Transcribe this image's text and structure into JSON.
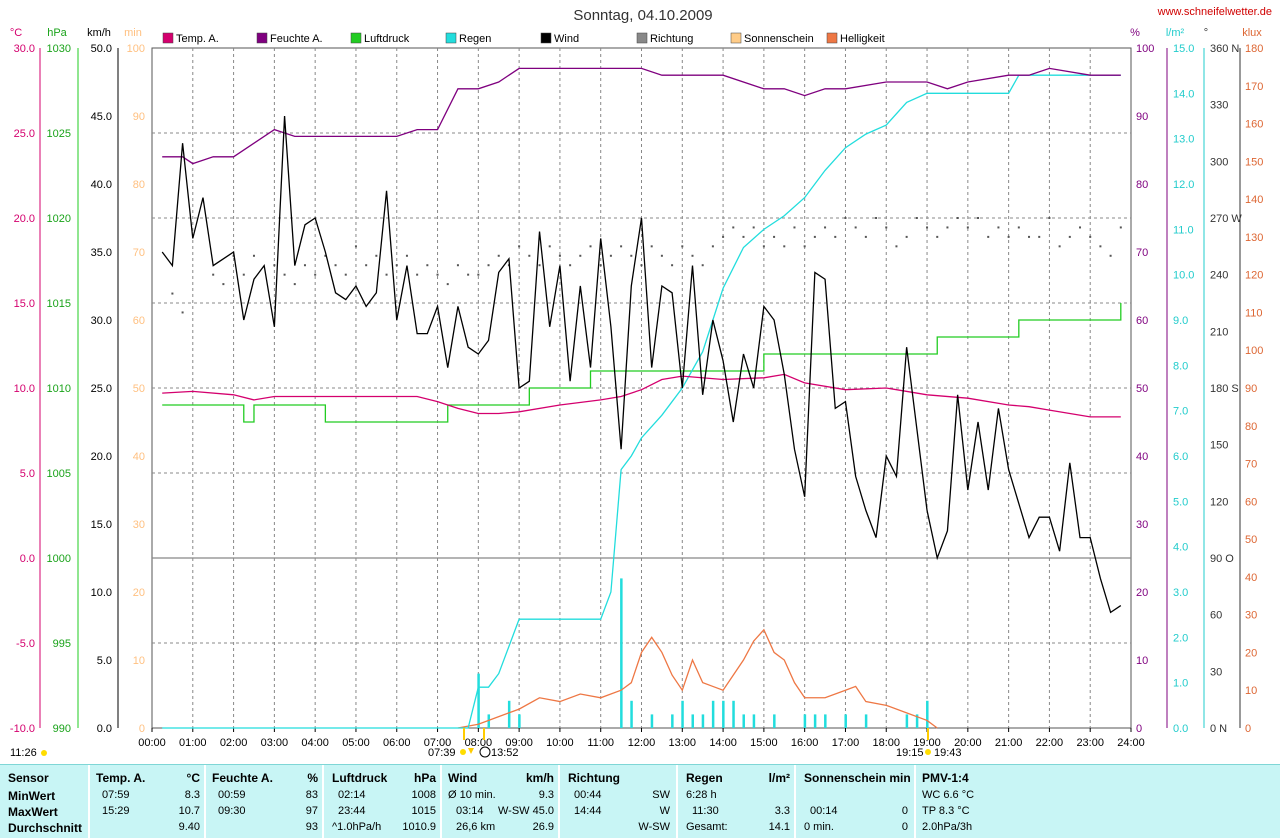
{
  "title": "Sonntag, 04.10.2009",
  "site": "www.schneifelwetter.de",
  "colors": {
    "temp": "#d4006e",
    "humidity": "#7f007f",
    "pressure": "#22cc22",
    "rain": "#22dddd",
    "wind": "#000000",
    "direction": "#555555",
    "sunshine": "#ffcc88",
    "brightness": "#ee7744",
    "grid": "#888888",
    "panel": "#c8f5f5"
  },
  "legend": [
    {
      "label": "Temp. A.",
      "color": "#d4006e"
    },
    {
      "label": "Feuchte A.",
      "color": "#7f007f"
    },
    {
      "label": "Luftdruck",
      "color": "#22cc22"
    },
    {
      "label": "Regen",
      "color": "#22dddd"
    },
    {
      "label": "Wind",
      "color": "#000000"
    },
    {
      "label": "Richtung",
      "color": "#888888"
    },
    {
      "label": "Sonnenschein",
      "color": "#ffcc88"
    },
    {
      "label": "Helligkeit",
      "color": "#ee7744"
    }
  ],
  "axes": {
    "temp": {
      "unit": "°C",
      "ticks": [
        "30.0",
        "25.0",
        "20.0",
        "15.0",
        "10.0",
        "5.0",
        "0.0",
        "-5.0",
        "-10.0"
      ]
    },
    "pressure": {
      "unit": "hPa",
      "ticks": [
        "1030",
        "1025",
        "1020",
        "1015",
        "1010",
        "1005",
        "1000",
        "995",
        "990"
      ]
    },
    "wind": {
      "unit": "km/h",
      "ticks": [
        "50.0",
        "45.0",
        "40.0",
        "35.0",
        "30.0",
        "25.0",
        "20.0",
        "15.0",
        "10.0",
        "5.0",
        "0.0"
      ]
    },
    "sun": {
      "unit": "min",
      "ticks": [
        "100",
        "90",
        "80",
        "70",
        "60",
        "50",
        "40",
        "30",
        "20",
        "10",
        "0"
      ]
    },
    "humidity": {
      "unit": "%",
      "ticks": [
        "100",
        "90",
        "80",
        "70",
        "60",
        "50",
        "40",
        "30",
        "20",
        "10",
        "0"
      ]
    },
    "rain": {
      "unit": "l/m²",
      "ticks": [
        "15.0",
        "14.0",
        "13.0",
        "12.0",
        "11.0",
        "10.0",
        "9.0",
        "8.0",
        "7.0",
        "6.0",
        "5.0",
        "4.0",
        "3.0",
        "2.0",
        "1.0",
        "0.0"
      ]
    },
    "direction": {
      "unit": "°",
      "ticks": [
        "360 N",
        "330",
        "300",
        "270 W",
        "240",
        "210",
        "180 S",
        "150",
        "120",
        "90 O",
        "60",
        "30",
        "0 N"
      ]
    },
    "lux": {
      "unit": "klux",
      "ticks": [
        "180",
        "170",
        "160",
        "150",
        "140",
        "130",
        "120",
        "110",
        "100",
        "90",
        "80",
        "70",
        "60",
        "50",
        "40",
        "30",
        "20",
        "10",
        "0"
      ]
    },
    "time": {
      "ticks": [
        "00:00",
        "01:00",
        "02:00",
        "03:00",
        "04:00",
        "05:00",
        "06:00",
        "07:00",
        "08:00",
        "09:00",
        "10:00",
        "11:00",
        "12:00",
        "13:00",
        "14:00",
        "15:00",
        "16:00",
        "17:00",
        "18:00",
        "19:00",
        "20:00",
        "21:00",
        "22:00",
        "23:00",
        "24:00"
      ]
    }
  },
  "sun_marks": {
    "moonset": "11:26",
    "sunrise": "07:39",
    "noon": "13:52",
    "sunset": "19:15",
    "moonrise": "19:43"
  },
  "chart_data": {
    "type": "line",
    "title": "Sonntag, 04.10.2009",
    "x_range": [
      "00:00",
      "24:00"
    ],
    "series": [
      {
        "name": "Temp. A.",
        "unit": "°C",
        "ylim": [
          -10,
          30
        ],
        "x": [
          0.25,
          1,
          2,
          2.5,
          3,
          4,
          5,
          6,
          6.5,
          7,
          7.5,
          8,
          8.5,
          9,
          10,
          11,
          11.5,
          12,
          12.5,
          13,
          14,
          15,
          15.5,
          16,
          17,
          18,
          19,
          20,
          21,
          21.5,
          22,
          23,
          23.75
        ],
        "y": [
          9.7,
          9.8,
          9.6,
          9.3,
          9.5,
          9.5,
          9.5,
          9.5,
          9.5,
          9.2,
          8.8,
          8.5,
          8.5,
          8.6,
          9.0,
          9.3,
          9.5,
          9.9,
          10.5,
          10.7,
          10.5,
          10.6,
          10.8,
          10.3,
          9.9,
          10.0,
          9.6,
          9.4,
          9.0,
          8.9,
          8.7,
          8.3,
          8.3
        ]
      },
      {
        "name": "Feuchte A.",
        "unit": "%",
        "ylim": [
          0,
          100
        ],
        "x": [
          0.25,
          0.75,
          1,
          1.5,
          2,
          2.5,
          3,
          3.5,
          6,
          6.5,
          7,
          7.5,
          8,
          8.5,
          9,
          9.5,
          10,
          11,
          12,
          12.5,
          13,
          14,
          15,
          15.5,
          16,
          16.5,
          17,
          18,
          18.5,
          19,
          19.5,
          20,
          21,
          21.5,
          22,
          23,
          23.5,
          23.75
        ],
        "y": [
          84,
          84,
          83,
          84,
          84,
          86,
          88,
          87,
          87,
          88,
          88,
          94,
          94,
          95,
          97,
          97,
          97,
          97,
          97,
          96,
          96,
          96,
          94,
          94,
          93,
          94,
          94,
          95,
          95,
          95,
          94,
          95,
          96,
          96,
          97,
          96,
          96,
          96
        ]
      },
      {
        "name": "Luftdruck",
        "unit": "hPa",
        "ylim": [
          990,
          1030
        ],
        "x": [
          0.25,
          2,
          2.25,
          2.5,
          3,
          4,
          4.25,
          6,
          7,
          7.25,
          9,
          9.25,
          10,
          10.75,
          11,
          12,
          13,
          14,
          15,
          15,
          16,
          17,
          18,
          19,
          19.25,
          20,
          21,
          21.25,
          22,
          23,
          23.75
        ],
        "y": [
          1009,
          1009,
          1008,
          1009,
          1009,
          1009,
          1008,
          1008,
          1008,
          1009,
          1009,
          1010,
          1010,
          1011,
          1011,
          1011,
          1011,
          1011,
          1011,
          1012,
          1012,
          1012,
          1012,
          1012,
          1013,
          1013,
          1013,
          1014,
          1014,
          1014,
          1015
        ]
      },
      {
        "name": "Regen",
        "unit": "l/m²",
        "ylim": [
          0,
          15
        ],
        "x": [
          0.25,
          7.75,
          8,
          8.25,
          8.5,
          9,
          11,
          11.25,
          11.5,
          11.75,
          12,
          12.5,
          13,
          13.5,
          14,
          14.5,
          15,
          15.5,
          16,
          16.5,
          17,
          17.5,
          18,
          18.5,
          19,
          20,
          21,
          21.25,
          23.75
        ],
        "y": [
          0,
          0,
          0.9,
          0.9,
          1.2,
          2.4,
          2.4,
          3.0,
          5.7,
          6.0,
          6.4,
          6.9,
          7.5,
          8.3,
          9.7,
          10.6,
          11.0,
          11.3,
          11.7,
          12.3,
          12.8,
          13.1,
          13.3,
          13.8,
          14.0,
          14.0,
          14.0,
          14.4,
          14.4
        ]
      },
      {
        "name": "Wind",
        "unit": "km/h",
        "ylim": [
          0,
          50
        ],
        "x": [
          0.25,
          0.5,
          0.75,
          1,
          1.25,
          1.5,
          1.75,
          2,
          2.25,
          2.5,
          2.75,
          3,
          3.25,
          3.5,
          3.75,
          4,
          4.25,
          4.5,
          4.75,
          5,
          5.25,
          5.5,
          5.75,
          6,
          6.25,
          6.5,
          6.75,
          7,
          7.25,
          7.5,
          7.75,
          8,
          8.25,
          8.5,
          8.75,
          9,
          9.25,
          9.5,
          9.75,
          10,
          10.25,
          10.5,
          10.75,
          11,
          11.25,
          11.5,
          11.75,
          12,
          12.25,
          12.5,
          12.75,
          13,
          13.25,
          13.5,
          13.75,
          14,
          14.25,
          14.5,
          14.75,
          15,
          15.25,
          15.5,
          15.75,
          16,
          16.25,
          16.5,
          16.75,
          17,
          17.25,
          17.5,
          17.75,
          18,
          18.25,
          18.5,
          18.75,
          19,
          19.25,
          19.5,
          19.75,
          20,
          20.25,
          20.5,
          20.75,
          21,
          21.25,
          21.5,
          21.75,
          22,
          22.25,
          22.5,
          22.75,
          23,
          23.25,
          23.5,
          23.75
        ],
        "y": [
          35,
          34,
          43,
          36,
          39,
          34,
          34.5,
          35,
          30,
          33,
          34,
          29.5,
          45,
          34,
          37,
          37.5,
          35,
          32,
          31.5,
          32.5,
          31,
          32,
          39.5,
          30,
          34,
          29,
          29,
          31,
          26.5,
          31,
          28,
          27.5,
          28.5,
          33.5,
          34.5,
          25,
          25.5,
          36.5,
          29.5,
          34,
          25.5,
          32.5,
          26.5,
          36,
          29.5,
          20.5,
          32.5,
          37.5,
          26.5,
          32.5,
          32,
          25,
          34,
          24.5,
          30,
          27,
          22.5,
          27.5,
          25,
          31,
          30,
          26,
          20.5,
          17,
          33.5,
          33,
          23.5,
          24,
          18.5,
          16,
          14,
          20,
          18.5,
          28,
          22,
          16,
          12.5,
          14.5,
          24.5,
          17.5,
          22.5,
          17.5,
          23.5,
          19,
          16.5,
          14,
          15.5,
          15.5,
          13,
          19.5,
          14,
          14,
          11,
          8.5,
          9
        ]
      },
      {
        "name": "Helligkeit",
        "unit": "klux",
        "ylim": [
          0,
          180
        ],
        "x": [
          7.5,
          8,
          8.5,
          9,
          9.5,
          10,
          10.5,
          11,
          11.5,
          11.75,
          12,
          12.25,
          12.5,
          12.75,
          13,
          13.25,
          13.5,
          13.75,
          14,
          14.25,
          14.5,
          14.75,
          15,
          15.25,
          15.5,
          15.75,
          16,
          16.5,
          17,
          17.25,
          17.5,
          18,
          18.5,
          19,
          19.25
        ],
        "y": [
          0,
          1,
          3,
          5,
          8,
          7,
          9,
          8,
          10,
          12,
          20,
          24,
          20,
          14,
          10,
          18,
          12,
          11,
          10,
          14,
          18,
          23,
          26,
          20,
          18,
          12,
          8,
          8,
          10,
          11,
          7,
          6,
          4,
          2,
          0
        ]
      },
      {
        "name": "Richtung",
        "unit": "°",
        "ylim": [
          0,
          360
        ],
        "x": [
          0.5,
          0.75,
          1.5,
          1.75,
          2,
          2.25,
          2.5,
          3,
          3.25,
          3.5,
          3.75,
          4,
          4.25,
          4.5,
          4.75,
          5,
          5.25,
          5.5,
          5.75,
          6,
          6.25,
          6.5,
          6.75,
          7,
          7.25,
          7.5,
          7.75,
          8,
          8.25,
          8.5,
          8.75,
          9,
          9.25,
          9.5,
          9.75,
          10,
          10.25,
          10.5,
          10.75,
          11,
          11.25,
          11.5,
          11.75,
          12,
          12.25,
          12.5,
          12.75,
          13,
          13.25,
          13.5,
          13.75,
          14,
          14.25,
          14.5,
          14.75,
          15,
          15.25,
          15.5,
          15.75,
          16,
          16.25,
          16.5,
          16.75,
          17,
          17.25,
          17.5,
          17.75,
          18,
          18.25,
          18.5,
          18.75,
          19,
          19.25,
          19.5,
          19.75,
          20,
          20.25,
          20.5,
          20.75,
          21,
          21.25,
          21.5,
          21.75,
          22,
          22.25,
          22.5,
          22.75,
          23,
          23.25,
          23.5,
          23.75
        ],
        "y": [
          230,
          220,
          240,
          235,
          250,
          240,
          250,
          245,
          240,
          235,
          245,
          240,
          250,
          245,
          240,
          255,
          245,
          250,
          240,
          245,
          250,
          240,
          245,
          240,
          235,
          245,
          240,
          240,
          245,
          250,
          245,
          255,
          250,
          245,
          255,
          250,
          245,
          250,
          255,
          245,
          250,
          255,
          250,
          245,
          255,
          250,
          245,
          255,
          250,
          245,
          255,
          260,
          265,
          260,
          265,
          255,
          260,
          255,
          265,
          255,
          260,
          265,
          260,
          270,
          265,
          260,
          270,
          265,
          255,
          260,
          270,
          265,
          260,
          265,
          270,
          265,
          270,
          260,
          265,
          260,
          265,
          260,
          260,
          270,
          255,
          260,
          265,
          260,
          255,
          250,
          265
        ]
      },
      {
        "name": "Regen (Balken)",
        "unit": "l/m²",
        "ylim": [
          0,
          15
        ],
        "x": [
          8,
          8.25,
          8.75,
          9,
          11.5,
          11.75,
          12.25,
          12.75,
          13,
          13.25,
          13.5,
          13.75,
          14,
          14.25,
          14.5,
          14.75,
          15.25,
          16,
          16.25,
          16.5,
          17,
          17.5,
          18.5,
          18.75,
          19
        ],
        "y": [
          1.2,
          0.3,
          0.6,
          0.3,
          3.3,
          0.6,
          0.3,
          0.3,
          0.6,
          0.3,
          0.3,
          0.6,
          0.6,
          0.6,
          0.3,
          0.3,
          0.3,
          0.3,
          0.3,
          0.3,
          0.3,
          0.3,
          0.3,
          0.3,
          0.6
        ]
      }
    ]
  },
  "stats": {
    "labels": {
      "sensor": "Sensor",
      "min": "MinWert",
      "max": "MaxWert",
      "avg": "Durchschnitt"
    },
    "temp": {
      "head": "Temp. A.",
      "unit": "°C",
      "min_t": "07:59",
      "min_v": "8.3",
      "max_t": "15:29",
      "max_v": "10.7",
      "avg": "9.40"
    },
    "hum": {
      "head": "Feuchte A.",
      "unit": "%",
      "min_t": "00:59",
      "min_v": "83",
      "max_t": "09:30",
      "max_v": "97",
      "avg": "93"
    },
    "press": {
      "head": "Luftdruck",
      "unit": "hPa",
      "min_t": "02:14",
      "min_v": "1008",
      "max_t": "23:44",
      "max_v": "1015",
      "avg_t": "^1.0hPa/h",
      "avg": "1010.9"
    },
    "wind": {
      "head": "Wind",
      "unit": "km/h",
      "min_t": "Ø 10 min.",
      "min_v": "9.3",
      "max_t": "03:14",
      "max_d": "W-SW",
      "max_v": "45.0",
      "avg_t": "26,6 km",
      "avg": "26.9"
    },
    "dir": {
      "head": "Richtung",
      "min_t": "00:44",
      "min_v": "SW",
      "max_t": "14:44",
      "max_v": "W",
      "avg": "W-SW"
    },
    "rain": {
      "head": "Regen",
      "unit": "l/m²",
      "min_t": "6:28 h",
      "max_t": "11:30",
      "max_v": "3.3",
      "avg_t": "Gesamt:",
      "avg": "14.1"
    },
    "sun": {
      "head": "Sonnenschein min",
      "max_t": "00:14",
      "max_v": "0",
      "avg_t": "0 min.",
      "avg": "0"
    },
    "pmv": {
      "head": "PMV-1:4",
      "min": "WC 6.6 °C",
      "max": "TP 8.3 °C",
      "avg": "2.0hPa/3h"
    }
  }
}
